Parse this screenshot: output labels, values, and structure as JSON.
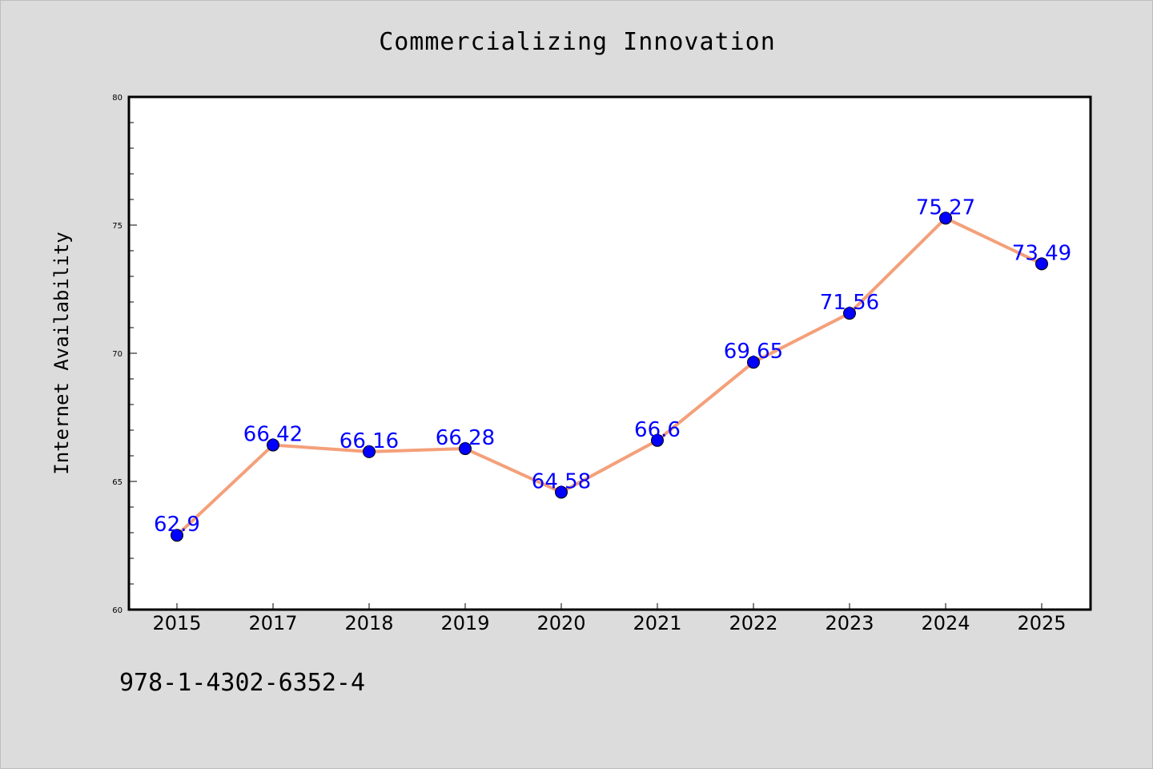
{
  "chart_data": {
    "type": "line",
    "title": "Commercializing Innovation",
    "xlabel": "",
    "ylabel": "Internet Availability",
    "categories": [
      "2015",
      "2017",
      "2018",
      "2019",
      "2020",
      "2021",
      "2022",
      "2023",
      "2024",
      "2025"
    ],
    "series": [
      {
        "values": [
          62.9,
          66.42,
          66.16,
          66.28,
          64.58,
          66.6,
          69.65,
          71.56,
          75.27,
          73.49
        ],
        "labels": [
          "62.9",
          "66.42",
          "66.16",
          "66.28",
          "64.58",
          "66.6",
          "69.65",
          "71.56",
          "75.27",
          "73.49"
        ],
        "line_color": "#f4a07a",
        "marker_color": "#0000ff",
        "label_color": "#0000ff"
      }
    ],
    "ylim": [
      60,
      80
    ],
    "y_ticks": [
      "60",
      "65",
      "70",
      "75",
      "80"
    ],
    "grid": false,
    "legend": "none"
  },
  "footer": {
    "code": "978-1-4302-6352-4"
  },
  "colors": {
    "page_bg": "#dcdcdc",
    "plot_bg": "#ffffff",
    "line": "#f4a07a",
    "marker": "#0000ff"
  }
}
